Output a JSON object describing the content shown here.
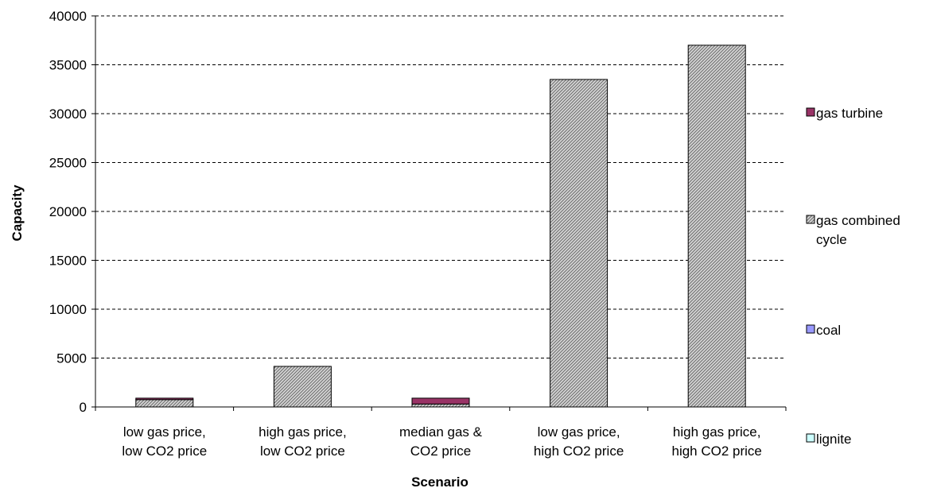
{
  "chart_data": {
    "type": "bar",
    "stacked": true,
    "title": "",
    "xlabel": "Scenario",
    "ylabel": "Capacity",
    "ylim": [
      0,
      40000
    ],
    "yticks": [
      0,
      5000,
      10000,
      15000,
      20000,
      25000,
      30000,
      35000,
      40000
    ],
    "grid": "horizontal-dashed",
    "legend": "right",
    "categories": [
      [
        "low gas price,",
        "low CO2 price"
      ],
      [
        "high gas price,",
        "low CO2 price"
      ],
      [
        "median gas &",
        "CO2 price"
      ],
      [
        "low gas price,",
        "high CO2 price"
      ],
      [
        "high gas price,",
        "high CO2 price"
      ]
    ],
    "series": [
      {
        "name": "lignite",
        "color": "#ccffff",
        "pattern": "solid",
        "values": [
          0,
          0,
          0,
          0,
          0
        ]
      },
      {
        "name": "coal",
        "color": "#9999ff",
        "pattern": "solid",
        "values": [
          0,
          0,
          0,
          0,
          0
        ]
      },
      {
        "name": "gas combined cycle",
        "color": "#c0c0c0",
        "pattern": "hatched",
        "values": [
          750,
          4150,
          300,
          33500,
          37000
        ]
      },
      {
        "name": "gas turbine",
        "color": "#993366",
        "pattern": "solid",
        "values": [
          150,
          0,
          600,
          0,
          0
        ]
      }
    ],
    "legend_entries": [
      {
        "series": "gas turbine",
        "lines": [
          "gas turbine"
        ]
      },
      {
        "series": "gas combined cycle",
        "lines": [
          "gas combined",
          "cycle"
        ]
      },
      {
        "series": "coal",
        "lines": [
          "coal"
        ]
      },
      {
        "series": "lignite",
        "lines": [
          "lignite"
        ]
      }
    ]
  }
}
